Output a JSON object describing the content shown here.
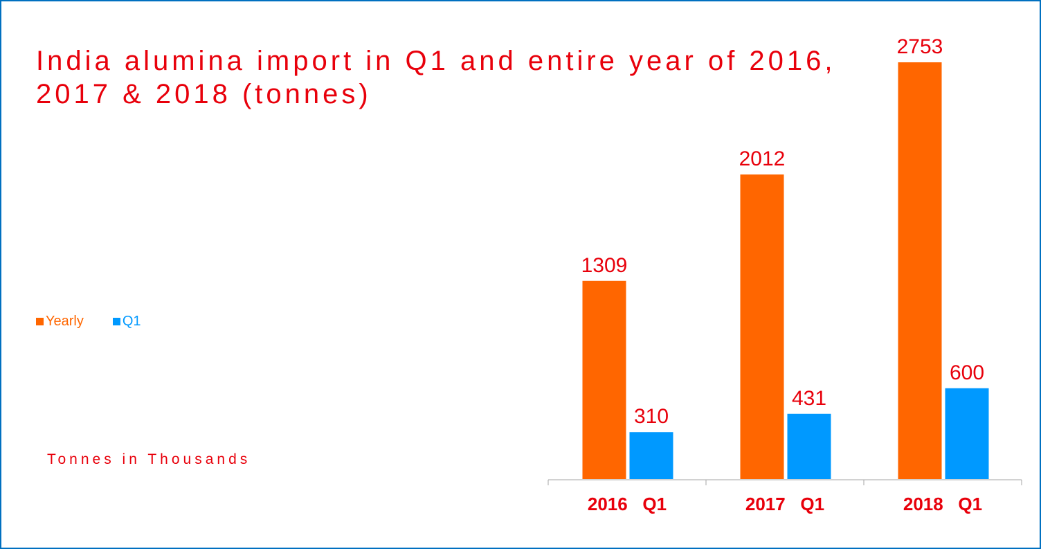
{
  "title": "India alumina import in Q1 and entire year of 2016, 2017 & 2018 (tonnes)",
  "unit_note": "Tonnes in Thousands",
  "colors": {
    "text": "#e8000b",
    "yearly": "#ff6600",
    "q1": "#0099ff",
    "axis": "#a6a6a6",
    "frame": "#0070c0"
  },
  "legend": [
    {
      "label": "Yearly",
      "color_key": "yearly"
    },
    {
      "label": "Q1",
      "color_key": "q1"
    }
  ],
  "chart_data": {
    "type": "bar",
    "categories": [
      "2016   Q1",
      "2017   Q1",
      "2018   Q1"
    ],
    "series": [
      {
        "name": "Yearly",
        "values": [
          1309,
          2012,
          2753
        ]
      },
      {
        "name": "Q1",
        "values": [
          310,
          431,
          600
        ]
      }
    ],
    "ylim": [
      0,
      2753
    ],
    "title": "India alumina import in Q1 and entire year of 2016, 2017 & 2018 (tonnes)",
    "xlabel": "",
    "ylabel": "",
    "grid": false,
    "legend_position": "left"
  }
}
